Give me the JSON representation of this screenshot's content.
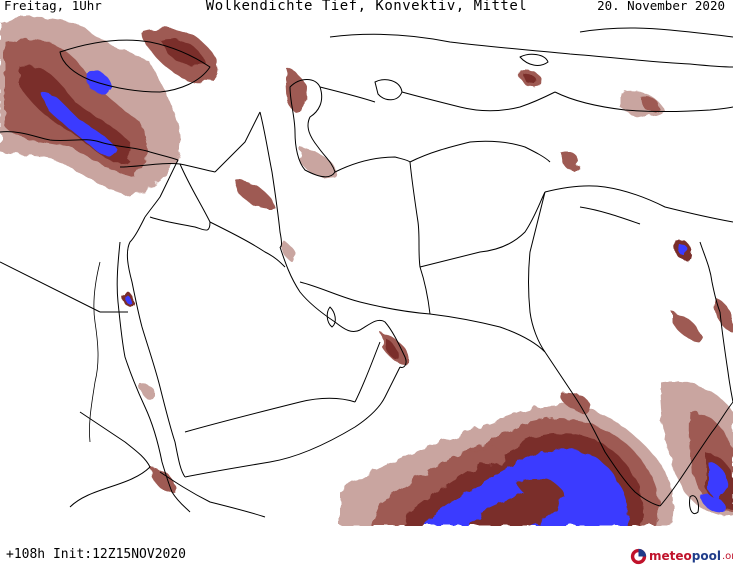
{
  "header": {
    "left": "Freitag, 1Uhr",
    "center": "Wolkendichte  Tief, Konvektiv, Mittel",
    "right": "20. November 2020"
  },
  "footer": {
    "run_info": "+108h Init:12Z15NOV2020",
    "logo_brand_a": "meteo",
    "logo_brand_b": "pool",
    "logo_brand_c": ".org"
  },
  "colors": {
    "background": "#ffffff",
    "borders": "#000000",
    "cloud_thin": "#c9a5a0",
    "cloud_medium": "#9e5a52",
    "cloud_dense": "#7a2f2b",
    "cloud_core": "#3a3aff",
    "logo_red": "#c0122b",
    "logo_blue": "#1f3c8a"
  }
}
